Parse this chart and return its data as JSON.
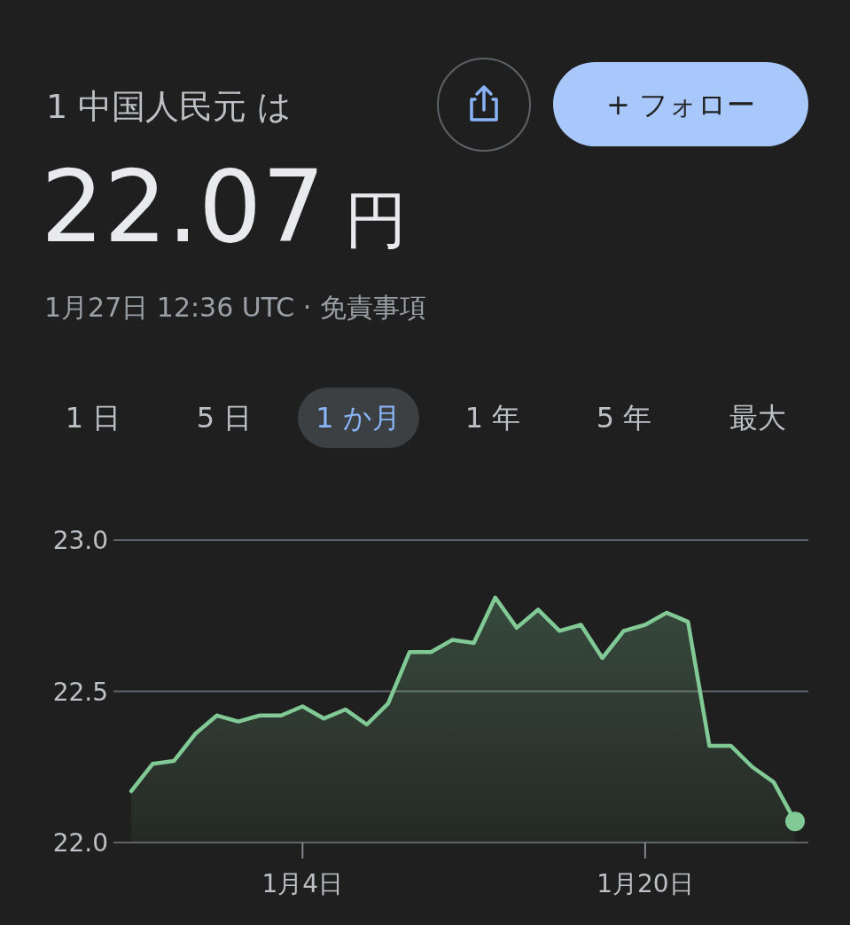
{
  "chart_data": {
    "type": "area",
    "title": "1 中国人民元 は",
    "subtitle": "22.07 円",
    "annotations": [
      "1月27日 12:36 UTC · 免責事項",
      "+ フォロー",
      "1 日",
      "5 日",
      "1 か月",
      "1 年",
      "5 年",
      "最大"
    ],
    "categories": [
      null,
      null,
      null,
      null,
      null,
      null,
      null,
      null,
      "1月4日",
      null,
      null,
      null,
      null,
      null,
      null,
      null,
      null,
      null,
      null,
      null,
      null,
      null,
      null,
      null,
      "1月20日",
      null,
      null,
      null,
      null,
      null,
      null,
      null
    ],
    "series": [
      {
        "color": "#81c995",
        "values": [
          22.17,
          22.26,
          22.27,
          22.36,
          22.42,
          22.4,
          22.42,
          22.42,
          22.45,
          22.41,
          22.44,
          22.39,
          22.46,
          22.63,
          22.63,
          22.67,
          22.66,
          22.81,
          22.71,
          22.77,
          22.7,
          22.72,
          22.61,
          22.7,
          22.72,
          22.76,
          22.73,
          22.32,
          22.32,
          22.25,
          22.2,
          22.07
        ]
      }
    ],
    "ylim": [
      22.0,
      23.0
    ],
    "yticks": [
      {
        "value": 22.0,
        "label": "22.0"
      },
      {
        "value": 22.5,
        "label": "22.5"
      },
      {
        "value": 23.0,
        "label": "23.0"
      }
    ],
    "grid": "y"
  }
}
